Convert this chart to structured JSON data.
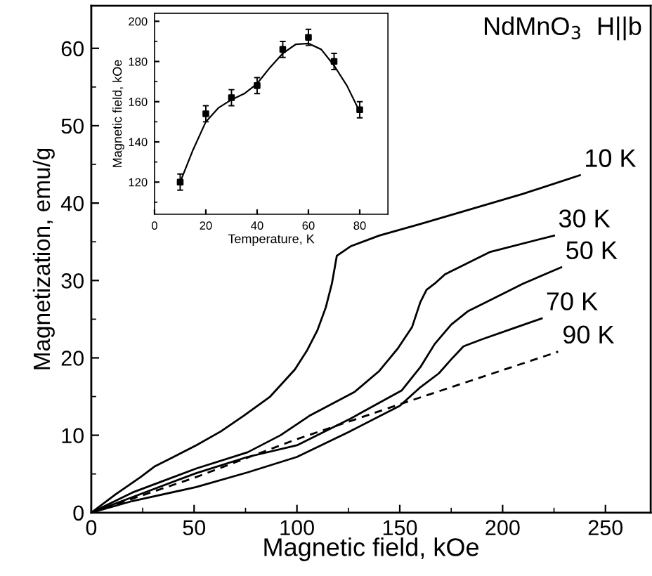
{
  "chart_data": [
    {
      "type": "line",
      "xlabel": "Magnetic field, kOe",
      "ylabel": "Magnetization, emu/g",
      "xlim": [
        0,
        272
      ],
      "ylim": [
        0,
        65.5
      ],
      "xticks": [
        0,
        {
          "value": 25,
          "label": null
        },
        50,
        {
          "value": 75,
          "label": null
        },
        100,
        {
          "value": 125,
          "label": null
        },
        150,
        {
          "value": 175,
          "label": null
        },
        200,
        {
          "value": 225,
          "label": null
        },
        250
      ],
      "yticks": [
        0,
        {
          "value": 5,
          "label": null
        },
        10,
        {
          "value": 15,
          "label": null
        },
        20,
        {
          "value": 25,
          "label": null
        },
        30,
        {
          "value": 35,
          "label": null
        },
        40,
        {
          "value": 45,
          "label": null
        },
        50,
        {
          "value": 55,
          "label": null
        },
        60
      ],
      "grid": false,
      "legend": false,
      "marker": "none",
      "series": [
        {
          "name": "10 K",
          "color": "#000000",
          "line_style": "solid",
          "x": [
            0,
            12,
            24,
            31,
            40,
            51,
            63,
            74,
            87,
            99,
            105,
            110,
            114,
            117,
            119.4,
            126,
            140,
            160,
            183,
            210,
            237.6
          ],
          "values": [
            0,
            2.4,
            4.6,
            6.0,
            7.2,
            8.7,
            10.5,
            12.5,
            15.0,
            18.5,
            21.0,
            23.6,
            26.5,
            29.6,
            33.2,
            34.4,
            35.8,
            37.3,
            39.1,
            41.2,
            43.6
          ]
        },
        {
          "name": "30 K",
          "color": "#000000",
          "line_style": "solid",
          "x": [
            0,
            20,
            35,
            51,
            76,
            92,
            106,
            128,
            140,
            149,
            156,
            160,
            163,
            167,
            172,
            194,
            225
          ],
          "values": [
            0,
            2.6,
            4.1,
            5.7,
            7.8,
            10.0,
            12.5,
            15.6,
            18.3,
            21.2,
            24.0,
            27.2,
            28.8,
            29.6,
            30.8,
            33.7,
            35.8
          ]
        },
        {
          "name": "50 K",
          "color": "#000000",
          "line_style": "solid",
          "x": [
            0,
            20,
            51,
            76,
            100,
            125,
            151,
            160,
            167,
            175,
            183,
            195,
            210,
            228.5
          ],
          "values": [
            0,
            2.0,
            5.1,
            7.2,
            8.7,
            12.0,
            15.8,
            18.8,
            21.8,
            24.3,
            26.0,
            27.6,
            29.6,
            31.7
          ]
        },
        {
          "name": "70 K",
          "color": "#000000",
          "line_style": "solid",
          "x": [
            0,
            20,
            51,
            76,
            100,
            125,
            150,
            160,
            169,
            175,
            181,
            190,
            205,
            219
          ],
          "values": [
            0,
            1.5,
            3.3,
            5.2,
            7.2,
            10.4,
            13.8,
            16.2,
            18.0,
            19.8,
            21.5,
            22.4,
            23.8,
            25.1
          ]
        },
        {
          "name": "90 K",
          "color": "#000000",
          "line_style": "dashed",
          "x": [
            0,
            50,
            100,
            150,
            227
          ],
          "values": [
            0,
            4.5,
            9.5,
            14.0,
            20.8
          ]
        }
      ],
      "annotations": [
        "NdMnO$_{3}$  H||b"
      ]
    },
    {
      "type": "line",
      "xlabel": "Temperature, K",
      "ylabel": "Magnetic field, kOe",
      "xlim": [
        0,
        91
      ],
      "ylim": [
        104,
        204
      ],
      "xticks": [
        0,
        20,
        40,
        60,
        80
      ],
      "yticks": [
        120,
        {
          "value": 130,
          "label": null
        },
        140,
        {
          "value": 150,
          "label": null
        },
        160,
        {
          "value": 170,
          "label": null
        },
        180,
        {
          "value": 190,
          "label": null
        },
        200,
        {
          "value": 110,
          "label": null
        }
      ],
      "grid": false,
      "legend": false,
      "series": [
        {
          "type": "scatter",
          "color": "#000000",
          "marker": "square",
          "x": [
            10,
            20,
            30,
            40,
            50,
            60,
            70,
            80
          ],
          "values": [
            120,
            154,
            162,
            168,
            186,
            192,
            180,
            156
          ],
          "errors": [
            4,
            4,
            4,
            4,
            4,
            4,
            4,
            4
          ]
        },
        {
          "type": "line",
          "color": "#000000",
          "marker": "none",
          "line_style": "solid",
          "x": [
            10,
            15,
            20,
            25,
            30,
            35,
            40,
            45,
            50,
            55,
            60,
            65,
            70,
            75,
            80
          ],
          "values": [
            120,
            136,
            150,
            157,
            161,
            164,
            169,
            177,
            184,
            188.5,
            189,
            186,
            178,
            168,
            155
          ]
        }
      ]
    }
  ]
}
